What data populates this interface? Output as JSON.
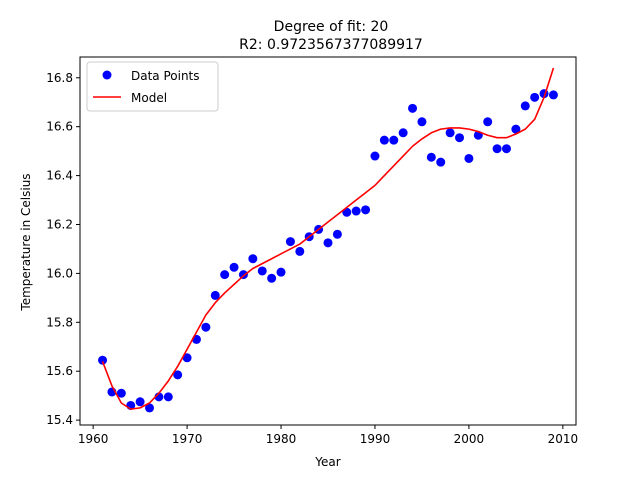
{
  "chart_data": {
    "type": "scatter",
    "title_line1": "Degree of fit: 20",
    "title_line2": "R2: 0.9723567377089917",
    "xlabel": "Year",
    "ylabel": "Temperature in Celsius",
    "xlim": [
      1958.6,
      2011.4
    ],
    "ylim": [
      15.38,
      16.885
    ],
    "xticks": [
      1960,
      1970,
      1980,
      1990,
      2000,
      2010
    ],
    "xtick_labels": [
      "1960",
      "1970",
      "1980",
      "1990",
      "2000",
      "2010"
    ],
    "yticks": [
      15.4,
      15.6,
      15.8,
      16.0,
      16.2,
      16.4,
      16.6,
      16.8
    ],
    "ytick_labels": [
      "15.4",
      "15.6",
      "15.8",
      "16.0",
      "16.2",
      "16.4",
      "16.6",
      "16.8"
    ],
    "grid": false,
    "legend_position": "upper-left",
    "legend": [
      "Data Points",
      "Model"
    ],
    "series": [
      {
        "name": "Data Points",
        "kind": "scatter",
        "color": "#0000ff",
        "x": [
          1961,
          1962,
          1963,
          1964,
          1965,
          1966,
          1967,
          1968,
          1969,
          1970,
          1971,
          1972,
          1973,
          1974,
          1975,
          1976,
          1977,
          1978,
          1979,
          1980,
          1981,
          1982,
          1983,
          1984,
          1985,
          1986,
          1987,
          1988,
          1989,
          1990,
          1991,
          1992,
          1993,
          1994,
          1995,
          1996,
          1997,
          1998,
          1999,
          2000,
          2001,
          2002,
          2003,
          2004,
          2005,
          2006,
          2007,
          2008,
          2009
        ],
        "y": [
          15.645,
          15.515,
          15.51,
          15.46,
          15.475,
          15.45,
          15.495,
          15.495,
          15.585,
          15.655,
          15.73,
          15.78,
          15.91,
          15.995,
          16.025,
          15.995,
          16.06,
          16.01,
          15.98,
          16.005,
          16.13,
          16.09,
          16.15,
          16.18,
          16.125,
          16.16,
          16.25,
          16.255,
          16.26,
          16.48,
          16.545,
          16.545,
          16.575,
          16.675,
          16.62,
          16.475,
          16.455,
          16.575,
          16.555,
          16.47,
          16.565,
          16.62,
          16.51,
          16.51,
          16.59,
          16.685,
          16.72,
          16.735,
          16.73
        ]
      },
      {
        "name": "Model",
        "kind": "line",
        "color": "#ff0000",
        "x": [
          1961,
          1962,
          1963,
          1964,
          1965,
          1966,
          1967,
          1968,
          1969,
          1970,
          1971,
          1972,
          1973,
          1974,
          1975,
          1976,
          1977,
          1978,
          1979,
          1980,
          1981,
          1982,
          1983,
          1984,
          1985,
          1986,
          1987,
          1988,
          1989,
          1990,
          1991,
          1992,
          1993,
          1994,
          1995,
          1996,
          1997,
          1998,
          1999,
          2000,
          2001,
          2002,
          2003,
          2004,
          2005,
          2006,
          2007,
          2008,
          2009
        ],
        "y": [
          15.64,
          15.54,
          15.47,
          15.445,
          15.45,
          15.47,
          15.51,
          15.56,
          15.62,
          15.69,
          15.76,
          15.83,
          15.88,
          15.92,
          15.955,
          15.99,
          16.02,
          16.04,
          16.06,
          16.08,
          16.1,
          16.12,
          16.15,
          16.18,
          16.21,
          16.24,
          16.27,
          16.3,
          16.33,
          16.36,
          16.4,
          16.44,
          16.48,
          16.52,
          16.55,
          16.575,
          16.59,
          16.595,
          16.595,
          16.59,
          16.58,
          16.565,
          16.555,
          16.555,
          16.57,
          16.59,
          16.63,
          16.72,
          16.84
        ]
      }
    ]
  }
}
